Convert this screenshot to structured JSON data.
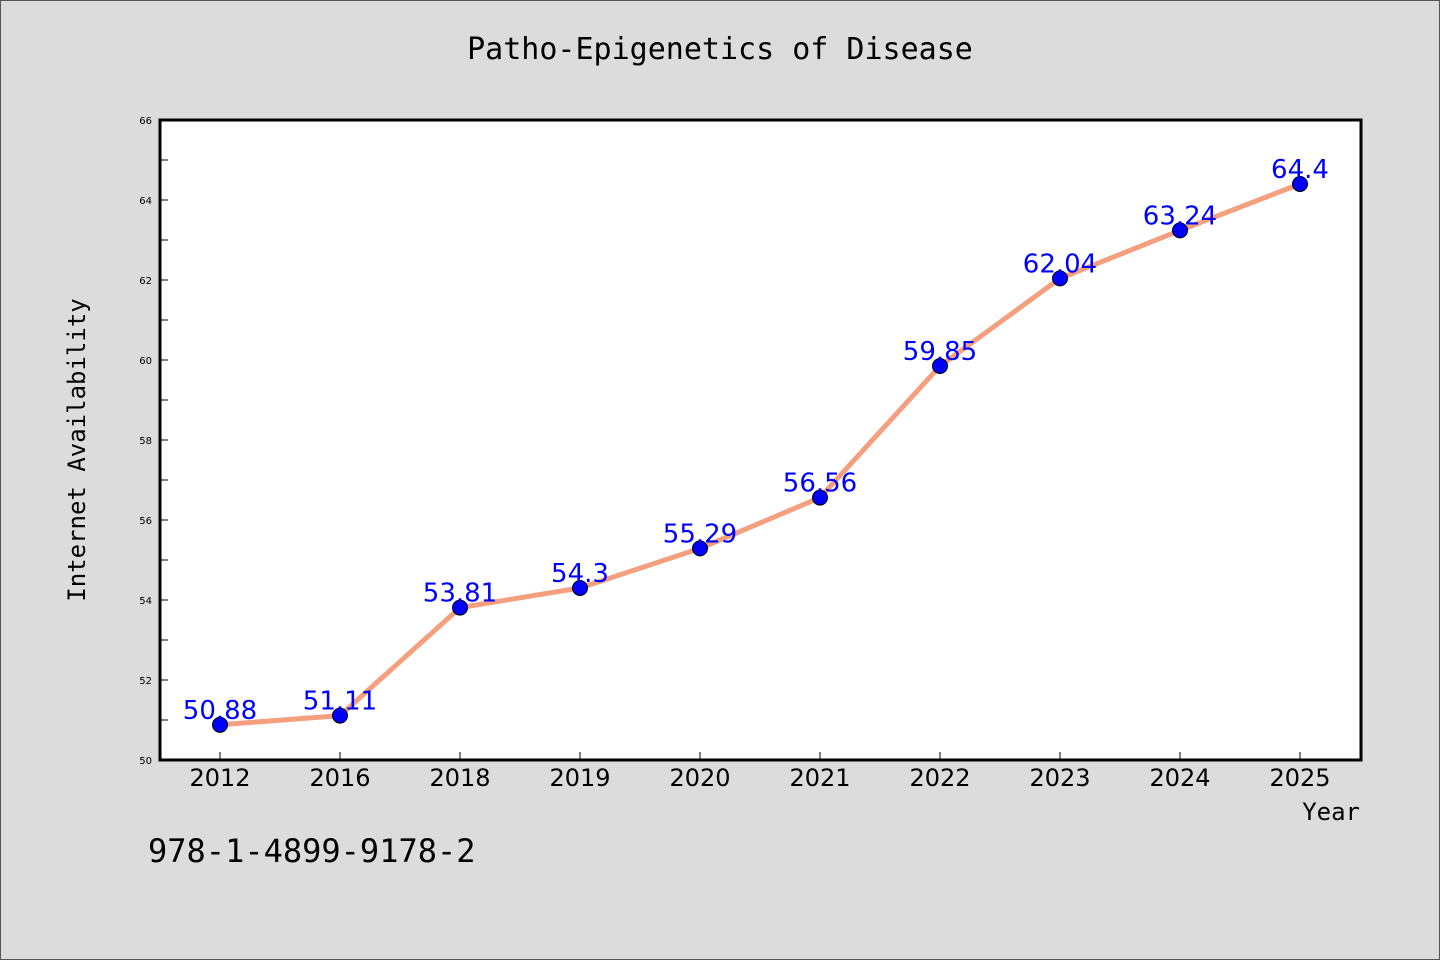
{
  "chart_data": {
    "type": "line",
    "title": "Patho-Epigenetics of Disease",
    "xlabel": "Year",
    "ylabel": "Internet Availability",
    "categories": [
      "2012",
      "2016",
      "2018",
      "2019",
      "2020",
      "2021",
      "2022",
      "2023",
      "2024",
      "2025"
    ],
    "series": [
      {
        "values": [
          50.88,
          51.11,
          53.81,
          54.3,
          55.29,
          56.56,
          59.85,
          62.04,
          63.24,
          64.4
        ],
        "data_labels": [
          "50.88",
          "51.11",
          "53.81",
          "54.3",
          "55.29",
          "56.56",
          "59.85",
          "62.04",
          "63.24",
          "64.4"
        ],
        "line_color": "#f4a07e",
        "marker_color": "#0000ff"
      }
    ],
    "ylim": [
      50,
      66
    ],
    "yticks": [
      50,
      52,
      54,
      56,
      58,
      60,
      62,
      64,
      66
    ],
    "grid": false,
    "legend": "none"
  },
  "footer": {
    "isbn": "978-1-4899-9178-2"
  },
  "colors": {
    "background": "#dcdcdc",
    "plot_background": "#ffffff",
    "line": "#f4a07e",
    "marker": "#0000ff",
    "label": "#0000ff"
  }
}
